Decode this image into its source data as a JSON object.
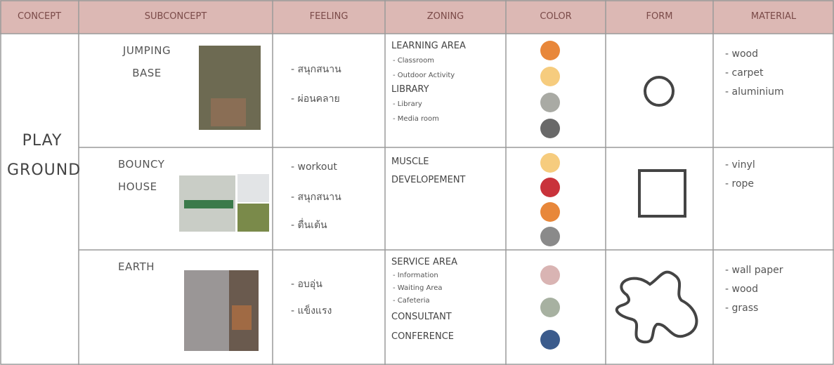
{
  "table": {
    "header": [
      "CONCEPT",
      "SUBCONCEPT",
      "FEELING",
      "ZONING",
      "COLOR",
      "FORM",
      "MATERIAL"
    ],
    "concept": "PLAY GROUND",
    "rows": [
      {
        "subconcept": "JUMPING BASE",
        "feeling": [
          "- สนุกสนาน",
          "- ผ่อนคลาย"
        ],
        "zoning": [
          {
            "title": "LEARNING AREA",
            "items": [
              "- Classroom",
              "- Outdoor Activity"
            ]
          },
          {
            "title": "LIBRARY",
            "items": [
              "- Library",
              "- Media room"
            ]
          }
        ],
        "colors": [
          "#e8873a",
          "#f6cc7e",
          "#a9aaa4",
          "#696969"
        ],
        "material": [
          "- wood",
          "- carpet",
          "- aluminium"
        ]
      },
      {
        "subconcept": "BOUNCY HOUSE",
        "feeling": [
          "- workout",
          "- สนุกสนาน",
          "- ตื่นเต้น"
        ],
        "zoning": [
          {
            "title": "MUSCLE",
            "items": []
          },
          {
            "title": "DEVELOPEMENT",
            "items": []
          }
        ],
        "colors": [
          "#f6cc7e",
          "#c9333b",
          "#e8873a",
          "#8a8a8a"
        ],
        "material": [
          "- vinyl",
          "- rope"
        ]
      },
      {
        "subconcept": "EARTH",
        "feeling": [
          "- อบอุ่น",
          "- แข็งแรง"
        ],
        "zoning": [
          {
            "title": "SERVICE AREA",
            "items": [
              "- Information",
              "- Waiting Area",
              "- Cafeteria"
            ]
          },
          {
            "title": "CONSULTANT",
            "items": []
          },
          {
            "title": "CONFERENCE",
            "items": []
          }
        ],
        "colors": [
          "#d9b4b3",
          "#a7b1a1",
          "#3b5b8c"
        ],
        "material": [
          "- wall paper",
          "- wood",
          "- grass"
        ]
      }
    ]
  }
}
